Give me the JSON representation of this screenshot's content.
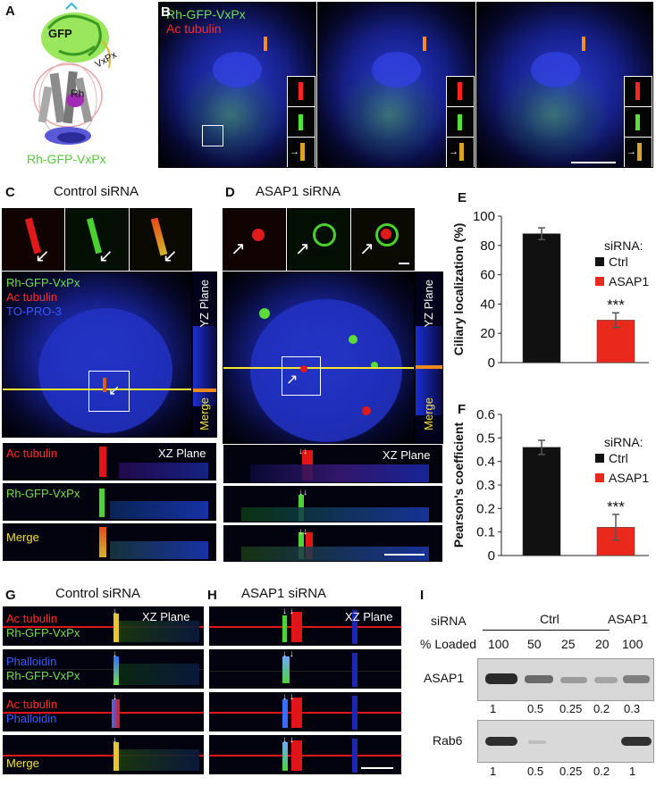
{
  "panels": {
    "A": {
      "letter": "A",
      "labels": {
        "gfp": "GFP",
        "vxpx": "VxPx",
        "rh": "Rh",
        "construct": "Rh-GFP-VxPx"
      }
    },
    "B": {
      "letter": "B",
      "labels": {
        "line1": "Rh-GFP-VxPx",
        "line2": "Ac tubulin"
      }
    },
    "C": {
      "letter": "C",
      "title": "Control siRNA",
      "labels": {
        "line1": "Rh-GFP-VxPx",
        "line2": "Ac tubulin",
        "line3": "TO-PRO-3",
        "yz": "YZ Plane",
        "merge_side": "Merge",
        "xz": "XZ Plane",
        "strip1": "Ac tubulin",
        "strip2": "Rh-GFP-VxPx",
        "strip3": "Merge"
      }
    },
    "D": {
      "letter": "D",
      "title": "ASAP1 siRNA",
      "labels": {
        "yz": "YZ Plane",
        "merge_side": "Merge",
        "xz": "XZ Plane"
      }
    },
    "E": {
      "letter": "E"
    },
    "F": {
      "letter": "F"
    },
    "G": {
      "letter": "G",
      "title": "Control siRNA",
      "labels": {
        "xz": "XZ Plane",
        "s1a": "Ac tubulin",
        "s1b": "Rh-GFP-VxPx",
        "s2a": "Phalloidin",
        "s2b": "Rh-GFP-VxPx",
        "s3a": "Ac tubulin",
        "s3b": "Phalloidin",
        "s4": "Merge"
      }
    },
    "H": {
      "letter": "H",
      "title": "ASAP1 siRNA",
      "labels": {
        "xz": "XZ Plane"
      }
    },
    "I": {
      "letter": "I",
      "row_siRNA": "siRNA",
      "ctrl": "Ctrl",
      "asap_header": "ASAP1",
      "row_loaded": "% Loaded",
      "loaded": [
        "100",
        "50",
        "25",
        "20",
        "100"
      ],
      "blot1_label": "ASAP1",
      "blot1_values": [
        "1",
        "0.5",
        "0.25",
        "0.2",
        "0.3"
      ],
      "blot2_label": "Rab6",
      "blot2_values": [
        "1",
        "0.5",
        "0.25",
        "0.2",
        "1"
      ]
    }
  },
  "chart_data": [
    {
      "type": "bar",
      "panel": "E",
      "ylabel": "Ciliary localization (%)",
      "ylim": [
        0,
        100
      ],
      "yticks": [
        "0",
        "20",
        "40",
        "60",
        "80",
        "100"
      ],
      "legend_title": "siRNA:",
      "series": [
        {
          "name": "Ctrl",
          "value": 88,
          "error": 4,
          "color": "#111111"
        },
        {
          "name": "ASAP1",
          "value": 29,
          "error": 5,
          "color": "#e8291c"
        }
      ],
      "annotation": "***"
    },
    {
      "type": "bar",
      "panel": "F",
      "ylabel": "Pearson's coefficient",
      "ylim": [
        0,
        0.6
      ],
      "yticks": [
        "0",
        "0.1",
        "0.2",
        "0.3",
        "0.4",
        "0.5",
        "0.6"
      ],
      "legend_title": "siRNA:",
      "series": [
        {
          "name": "Ctrl",
          "value": 0.46,
          "error": 0.03,
          "color": "#111111"
        },
        {
          "name": "ASAP1",
          "value": 0.12,
          "error": 0.055,
          "color": "#e8291c"
        }
      ],
      "annotation": "***"
    }
  ]
}
